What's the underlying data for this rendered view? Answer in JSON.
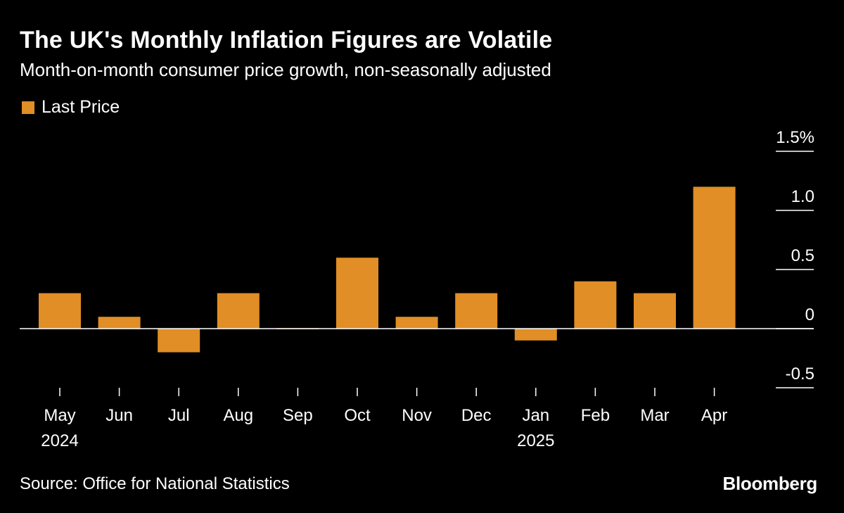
{
  "title": "The UK's Monthly Inflation Figures are Volatile",
  "subtitle": "Month-on-month consumer price growth, non-seasonally adjusted",
  "source": "Source: Office for National Statistics",
  "brand": "Bloomberg",
  "colors": {
    "bar": "#e08e25",
    "background": "#000000",
    "text": "#ffffff",
    "gridline": "#ffffff"
  },
  "chart_data": {
    "type": "bar",
    "title": "The UK's Monthly Inflation Figures are Volatile",
    "subtitle": "Month-on-month consumer price growth, non-seasonally adjusted",
    "legend": [
      "Last Price"
    ],
    "legend_position": "top-left",
    "categories": [
      "May",
      "Jun",
      "Jul",
      "Aug",
      "Sep",
      "Oct",
      "Nov",
      "Dec",
      "Jan",
      "Feb",
      "Mar",
      "Apr"
    ],
    "year_labels": [
      {
        "category": "May",
        "label": "2024"
      },
      {
        "category": "Jan",
        "label": "2025"
      }
    ],
    "series": [
      {
        "name": "Last Price",
        "values": [
          0.3,
          0.1,
          -0.2,
          0.3,
          0.0,
          0.6,
          0.1,
          0.3,
          -0.1,
          0.4,
          0.3,
          1.2
        ]
      }
    ],
    "ylim": [
      -0.5,
      1.5
    ],
    "yticks": [
      -0.5,
      0,
      0.5,
      1.0,
      1.5
    ],
    "ytick_labels": [
      "-0.5",
      "0",
      "0.5",
      "1.0",
      "1.5%"
    ],
    "y_axis_side": "right",
    "xlabel": "",
    "ylabel": ""
  }
}
